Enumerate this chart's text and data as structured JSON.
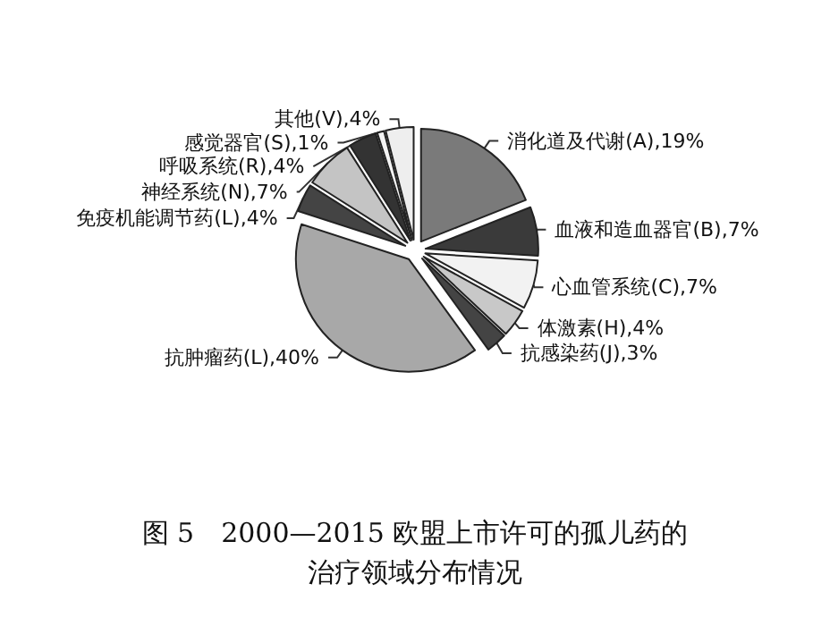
{
  "chart_data": {
    "type": "pie",
    "title": "图 5　2000—2015 欧盟上市许可的孤儿药的治疗领域分布情况",
    "categories": [
      "消化道及代谢(A)",
      "血液和造血器官(B)",
      "心血管系统(C)",
      "体激素(H)",
      "抗感染药(J)",
      "抗肿瘤药(L)",
      "免疫机能调节药(L)",
      "神经系统(N)",
      "呼吸系统(R)",
      "感觉器官(S)",
      "其他(V)"
    ],
    "values": [
      19,
      7,
      7,
      4,
      3,
      40,
      4,
      7,
      4,
      1,
      4
    ],
    "value_labels": [
      "19%",
      "7%",
      "7%",
      "4%",
      "3%",
      "40%",
      "4%",
      "7%",
      "4%",
      "1%",
      "4%"
    ],
    "colors": [
      "#7a7a7a",
      "#3a3a3a",
      "#f2f2f2",
      "#c8c8c8",
      "#444444",
      "#a8a8a8",
      "#444444",
      "#c4c4c4",
      "#333333",
      "#f4f4f4",
      "#eeeeee"
    ],
    "legend": false
  }
}
